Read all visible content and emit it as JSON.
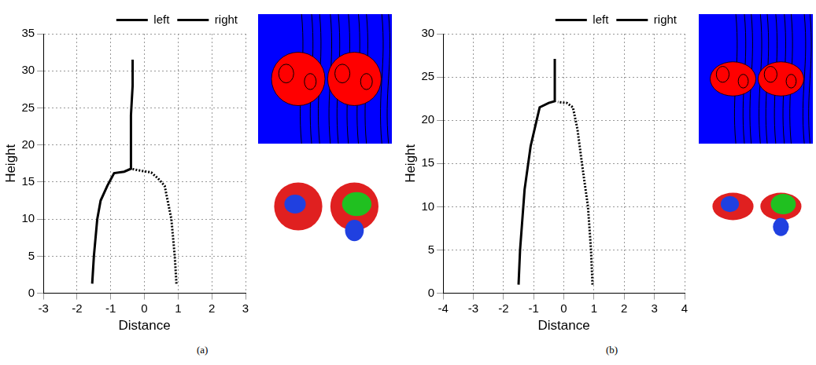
{
  "chart_data": [
    {
      "type": "line",
      "caption": "(a)",
      "x_label": "Distance",
      "y_label": "Height",
      "xlim": [
        -3,
        3
      ],
      "xticks": [
        -3,
        -2,
        -1,
        0,
        1,
        2,
        3
      ],
      "ylim": [
        0,
        35
      ],
      "yticks": [
        0,
        5,
        10,
        15,
        20,
        25,
        30,
        35
      ],
      "grid": true,
      "legend": "top right",
      "series": [
        {
          "name": "left",
          "color": "#000000",
          "line_style": "solid",
          "x": [
            -1.55,
            -1.5,
            -1.4,
            -1.3,
            -1.1,
            -0.9,
            -0.6,
            -0.4,
            -0.4,
            -0.35,
            -0.35
          ],
          "values": [
            1.3,
            5,
            10,
            12.5,
            14.5,
            16.2,
            16.4,
            16.8,
            24,
            28,
            31.5
          ]
        },
        {
          "name": "right",
          "color": "#000000",
          "line_style": "dotted",
          "x": [
            0.95,
            0.9,
            0.8,
            0.6,
            0.4,
            0.2,
            -0.2,
            -0.4
          ],
          "values": [
            1.3,
            5,
            10,
            14.5,
            15.5,
            16.3,
            16.6,
            16.8
          ]
        }
      ]
    },
    {
      "type": "line",
      "caption": "(b)",
      "x_label": "Distance",
      "y_label": "Height",
      "xlim": [
        -4,
        4
      ],
      "xticks": [
        -4,
        -3,
        -2,
        -1,
        0,
        1,
        2,
        3,
        4
      ],
      "ylim": [
        0,
        30
      ],
      "yticks": [
        0,
        5,
        10,
        15,
        20,
        25,
        30
      ],
      "grid": true,
      "legend": "top right",
      "series": [
        {
          "name": "left",
          "color": "#000000",
          "line_style": "solid",
          "x": [
            -1.5,
            -1.45,
            -1.3,
            -1.1,
            -0.9,
            -0.8,
            -0.5,
            -0.3,
            -0.3,
            -0.3
          ],
          "values": [
            1,
            5,
            12,
            17,
            20,
            21.5,
            22,
            22.2,
            23,
            27.1
          ]
        },
        {
          "name": "right",
          "color": "#000000",
          "line_style": "dotted",
          "x": [
            0.95,
            0.9,
            0.8,
            0.6,
            0.45,
            0.3,
            0.1,
            -0.2
          ],
          "values": [
            1,
            5,
            10,
            15,
            19,
            21.5,
            22,
            22.1
          ]
        }
      ]
    }
  ]
}
